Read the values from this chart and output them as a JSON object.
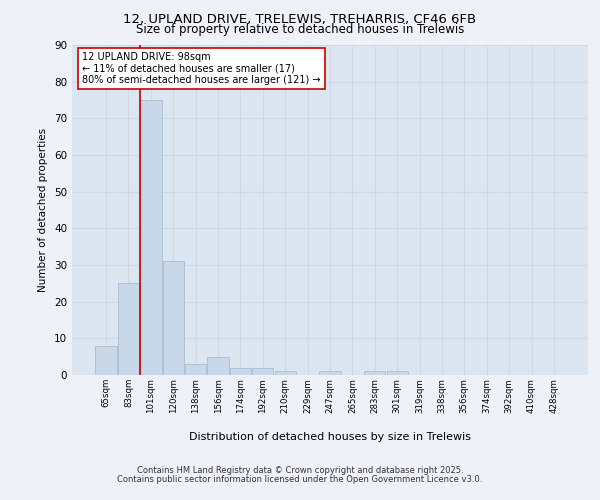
{
  "title1": "12, UPLAND DRIVE, TRELEWIS, TREHARRIS, CF46 6FB",
  "title2": "Size of property relative to detached houses in Trelewis",
  "xlabel": "Distribution of detached houses by size in Trelewis",
  "ylabel": "Number of detached properties",
  "categories": [
    "65sqm",
    "83sqm",
    "101sqm",
    "120sqm",
    "138sqm",
    "156sqm",
    "174sqm",
    "192sqm",
    "210sqm",
    "229sqm",
    "247sqm",
    "265sqm",
    "283sqm",
    "301sqm",
    "319sqm",
    "338sqm",
    "356sqm",
    "374sqm",
    "392sqm",
    "410sqm",
    "428sqm"
  ],
  "values": [
    8,
    25,
    75,
    31,
    3,
    5,
    2,
    2,
    1,
    0,
    1,
    0,
    1,
    1,
    0,
    0,
    0,
    0,
    0,
    0,
    0
  ],
  "bar_color": "#c8d8e8",
  "bar_edge_color": "#a0b8d0",
  "property_line_x": 1.5,
  "annotation_text": "12 UPLAND DRIVE: 98sqm\n← 11% of detached houses are smaller (17)\n80% of semi-detached houses are larger (121) →",
  "annotation_box_color": "#ffffff",
  "annotation_box_edge": "#cc0000",
  "line_color": "#cc0000",
  "ylim": [
    0,
    90
  ],
  "yticks": [
    0,
    10,
    20,
    30,
    40,
    50,
    60,
    70,
    80,
    90
  ],
  "grid_color": "#d0d8e8",
  "background_color": "#dce6f0",
  "fig_background": "#eef2f8",
  "footer1": "Contains HM Land Registry data © Crown copyright and database right 2025.",
  "footer2": "Contains public sector information licensed under the Open Government Licence v3.0."
}
